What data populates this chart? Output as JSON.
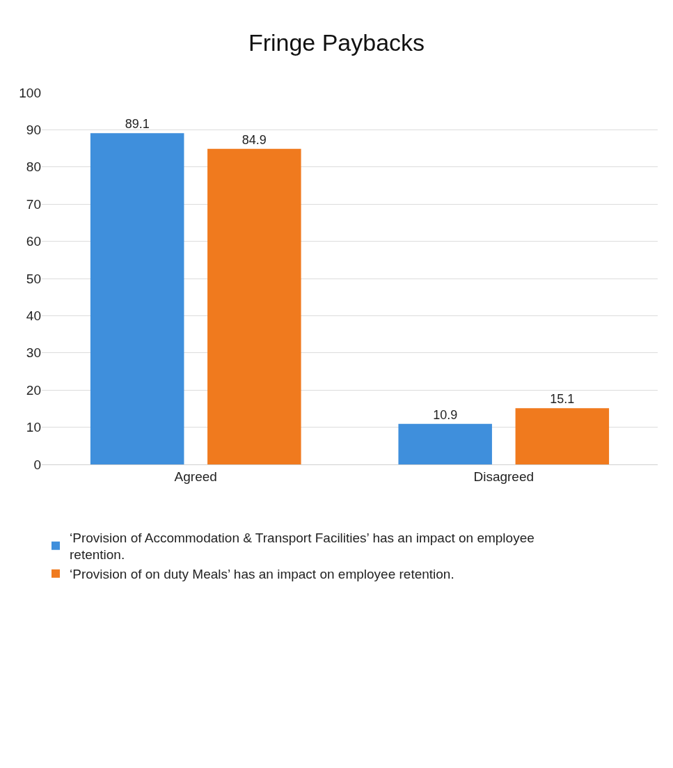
{
  "chart_data": {
    "type": "bar",
    "title": "Fringe Paybacks",
    "categories": [
      "Agreed",
      "Disagreed"
    ],
    "series": [
      {
        "name": "‘Provision of Accommodation & Transport Facilities’ has an impact on employee retention.",
        "color": "#3f8fdc",
        "values": [
          89.1,
          10.9
        ]
      },
      {
        "name": "‘Provision of on duty Meals’ has an impact on employee retention.",
        "color": "#f07a1e",
        "values": [
          84.9,
          15.1
        ]
      }
    ],
    "ylim": [
      0,
      100
    ],
    "yticks": [
      0,
      10,
      20,
      30,
      40,
      50,
      60,
      70,
      80,
      90,
      100
    ],
    "grid": "y",
    "legend": "bottom",
    "data_labels": true
  }
}
